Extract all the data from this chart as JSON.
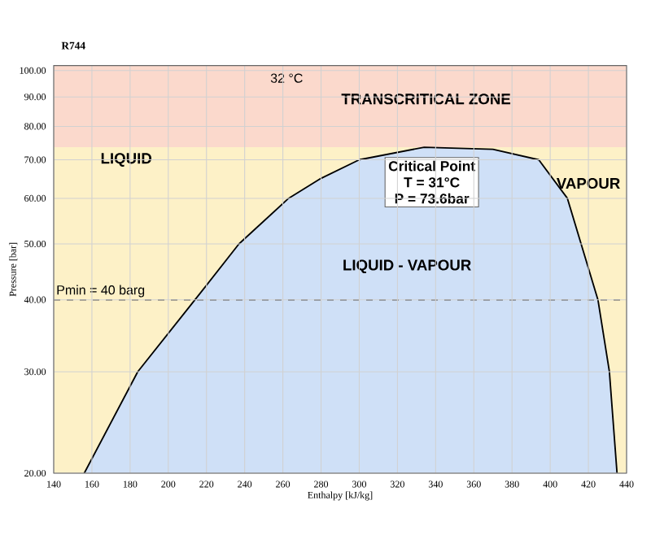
{
  "chart_data": {
    "type": "area",
    "title": "R744",
    "xlabel": "Enthalpy [kJ/kg]",
    "ylabel": "Pressure [bar]",
    "series": [
      {
        "color": "#cfe0f7",
        "x": [
          156,
          184,
          214,
          237,
          263,
          280,
          300,
          334,
          370,
          394,
          409,
          425,
          431,
          435
        ],
        "values": [
          20,
          30,
          40,
          50,
          60,
          65,
          70,
          73.6,
          73,
          70,
          60,
          40,
          30,
          20
        ]
      }
    ],
    "xlim": [
      140,
      440
    ],
    "xticks": [
      140,
      160,
      180,
      200,
      220,
      240,
      260,
      280,
      300,
      320,
      340,
      360,
      380,
      400,
      420,
      440
    ],
    "ylim": [
      20,
      102
    ],
    "log": "y",
    "yticks": [
      {
        "value": 20,
        "label": "20.00"
      },
      {
        "value": 30,
        "label": "30.00"
      },
      {
        "value": 40,
        "label": "40.00"
      },
      {
        "value": 50,
        "label": "50.00"
      },
      {
        "value": 60,
        "label": "60.00"
      },
      {
        "value": 70,
        "label": "70.00"
      },
      {
        "value": 80,
        "label": "80.00"
      },
      {
        "value": 90,
        "label": "90.00"
      },
      {
        "value": 100,
        "label": "100.00"
      }
    ],
    "grid": true,
    "ref_lines": [
      {
        "axis": "y",
        "value": 40,
        "label": "Pmin = 40 barg",
        "color": "#333333",
        "line_style": "dashed"
      }
    ],
    "bands": [
      {
        "axis": "y",
        "from": 20,
        "to": 73.6,
        "color": "#fdf1c7"
      },
      {
        "axis": "y",
        "from": 73.6,
        "to": 102,
        "label": "TRANSCRITICAL ZONE",
        "color": "#fbd9cc"
      }
    ],
    "annotations": [
      "32 °C",
      "LIQUID",
      "VAPOUR",
      "LIQUID - VAPOUR",
      "Critical Point",
      "T = 31°C",
      "P = 73.6bar"
    ]
  }
}
